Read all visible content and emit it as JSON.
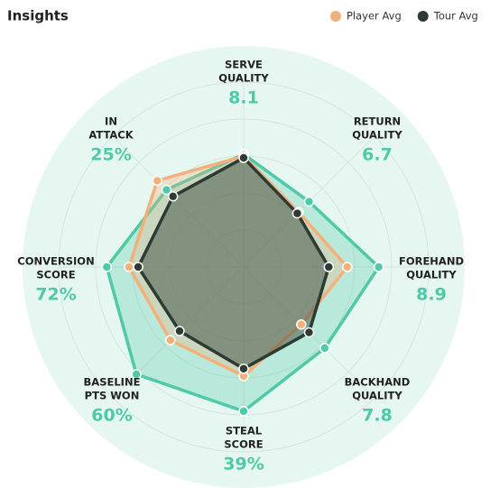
{
  "chart_data": {
    "type": "radar",
    "title": "Insights",
    "axes": [
      {
        "label": [
          "SERVE",
          "QUALITY"
        ],
        "value_label": "8.1"
      },
      {
        "label": [
          "RETURN",
          "QUALITY"
        ],
        "value_label": "6.7"
      },
      {
        "label": [
          "FOREHAND",
          "QUALITY"
        ],
        "value_label": "8.9"
      },
      {
        "label": [
          "BACKHAND",
          "QUALITY"
        ],
        "value_label": "7.8"
      },
      {
        "label": [
          "STEAL",
          "SCORE"
        ],
        "value_label": "39%"
      },
      {
        "label": [
          "BASELINE",
          "PTS WON"
        ],
        "value_label": "60%"
      },
      {
        "label": [
          "CONVERSION",
          "SCORE"
        ],
        "value_label": "72%"
      },
      {
        "label": [
          "IN",
          "ATTACK"
        ],
        "value_label": "25%"
      }
    ],
    "rlim": [
      0,
      100
    ],
    "rticks": [
      20,
      40,
      60,
      80,
      100
    ],
    "series": [
      {
        "color": "#4fc9a8",
        "values": [
          61,
          50,
          73,
          62,
          78,
          82,
          74,
          59
        ]
      },
      {
        "name": "Player Avg",
        "color": "#f4b07a",
        "values": [
          60,
          42,
          56,
          44,
          59,
          56,
          62,
          66
        ]
      },
      {
        "name": "Tour Avg",
        "color": "#2d3b34",
        "values": [
          59,
          41,
          46,
          50,
          55,
          49,
          57,
          54
        ]
      }
    ]
  }
}
